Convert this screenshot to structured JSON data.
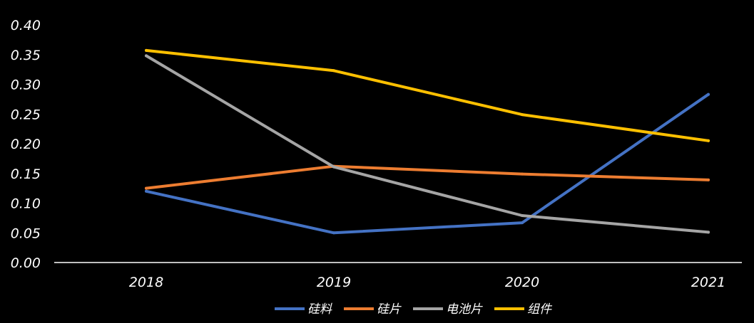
{
  "chart_data": {
    "type": "line",
    "title": "",
    "xlabel": "",
    "ylabel": "",
    "categories": [
      "2018",
      "2019",
      "2020",
      "2021"
    ],
    "ylim": [
      0,
      0.4
    ],
    "yticks": [
      "0.00",
      "0.05",
      "0.10",
      "0.15",
      "0.20",
      "0.25",
      "0.30",
      "0.35",
      "0.40"
    ],
    "grid": false,
    "legend_position": "bottom",
    "series": [
      {
        "name": "硅料",
        "color": "#4472c4",
        "values": [
          0.12,
          0.05,
          0.067,
          0.283
        ]
      },
      {
        "name": "硅片",
        "color": "#ed7d31",
        "values": [
          0.125,
          0.162,
          0.149,
          0.139
        ]
      },
      {
        "name": "电池片",
        "color": "#a5a5a5",
        "values": [
          0.348,
          0.161,
          0.079,
          0.051
        ]
      },
      {
        "name": "组件",
        "color": "#ffc000",
        "values": [
          0.357,
          0.323,
          0.249,
          0.205
        ]
      }
    ]
  }
}
